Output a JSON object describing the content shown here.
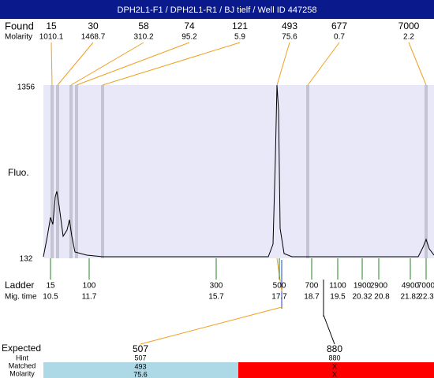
{
  "header": {
    "title": "DPH2L1-F1 / DPH2L1-R1 / BJ tielf / Well ID 447258"
  },
  "found": {
    "label": "Found",
    "molarity_label": "Molarity",
    "peaks": [
      {
        "size": "15",
        "molarity": "1010.1"
      },
      {
        "size": "30",
        "molarity": "1468.7"
      },
      {
        "size": "58",
        "molarity": "310.2"
      },
      {
        "size": "74",
        "molarity": "95.2"
      },
      {
        "size": "121",
        "molarity": "5.9"
      },
      {
        "size": "493",
        "molarity": "75.6"
      },
      {
        "size": "677",
        "molarity": "0.7"
      },
      {
        "size": "7000",
        "molarity": "2.2"
      }
    ]
  },
  "y_axis": {
    "label": "Fluo.",
    "top": "1356",
    "bottom": "132"
  },
  "ladder": {
    "label": "Ladder",
    "time_label": "Mig. time",
    "items": [
      {
        "size": "15",
        "time": "10.5"
      },
      {
        "size": "100",
        "time": "11.7"
      },
      {
        "size": "300",
        "time": "15.7"
      },
      {
        "size": "500",
        "time": "17.7"
      },
      {
        "size": "700",
        "time": "18.7"
      },
      {
        "size": "1100",
        "time": "19.5"
      },
      {
        "size": "1900",
        "time": "20.32"
      },
      {
        "size": "2900",
        "time": "20.8"
      },
      {
        "size": "4900",
        "time": "21.82"
      },
      {
        "size": "7000",
        "time": "22.3"
      }
    ]
  },
  "expected": {
    "labels": {
      "expected": "Expected",
      "hint": "Hint",
      "matched": "Matched",
      "molarity": "Molarity"
    },
    "columns": [
      {
        "expected": "507",
        "hint": "507",
        "matched": "493",
        "molarity": "75.6"
      },
      {
        "expected": "880",
        "hint": "880",
        "matched": "X",
        "molarity": "X"
      }
    ]
  }
}
